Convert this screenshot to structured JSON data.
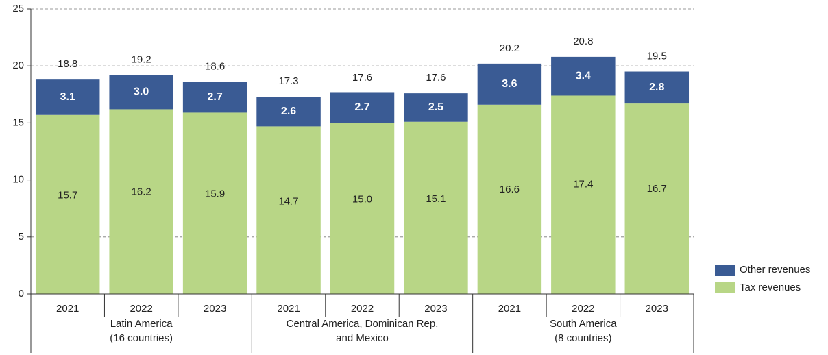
{
  "chart_data": {
    "type": "stacked_bar",
    "categories": [
      "2021",
      "2022",
      "2023",
      "2021",
      "2022",
      "2023",
      "2021",
      "2022",
      "2023"
    ],
    "groups": [
      [
        "Latin America",
        "(16 countries)"
      ],
      [
        "Central America, Dominican Rep.",
        "and Mexico"
      ],
      [
        "South America",
        "(8 countries)"
      ]
    ],
    "series": [
      {
        "name": "Tax revenues",
        "color": "#b8d686",
        "values": [
          15.7,
          16.2,
          15.9,
          14.7,
          15,
          15.1,
          16.6,
          17.4,
          16.7
        ],
        "value_labels": [
          "15.7",
          "16.2",
          "15.9",
          "14.7",
          "15.0",
          "15.1",
          "16.6",
          "17.4",
          "16.7"
        ]
      },
      {
        "name": "Other revenues",
        "color": "#3a5b94",
        "values": [
          3.1,
          3,
          2.7,
          2.6,
          2.7,
          2.5,
          3.6,
          3.4,
          2.8
        ],
        "value_labels": [
          "3.1",
          "3.0",
          "2.7",
          "2.6",
          "2.7",
          "2.5",
          "3.6",
          "3.4",
          "2.8"
        ]
      }
    ],
    "totals": [
      18.8,
      19.2,
      18.6,
      17.3,
      17.6,
      17.6,
      20.2,
      20.8,
      19.5
    ],
    "ylim": [
      0,
      25
    ],
    "yticks": [
      0,
      5,
      10,
      15,
      20,
      25
    ],
    "grid": true,
    "legend": "bottom-right"
  }
}
